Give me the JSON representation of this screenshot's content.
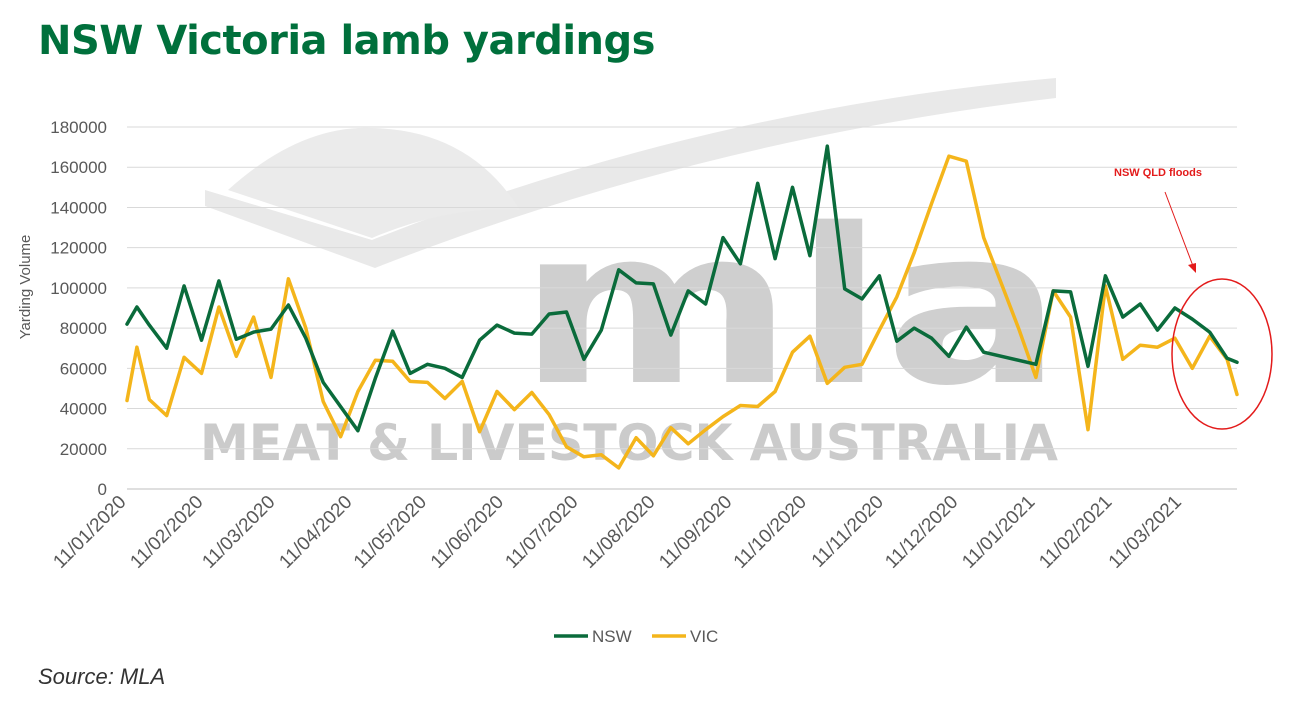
{
  "title": "NSW Victoria lamb yardings",
  "source": "Source: MLA",
  "watermark": {
    "logo_text": "mla",
    "company_text": "MEAT & LIVESTOCK AUSTRALIA"
  },
  "colors": {
    "nsw": "#0a6b3b",
    "vic": "#f4b51b",
    "title": "#00703c",
    "annotation": "#e31b1b",
    "grid": "#d9d9d9",
    "watermark": "#c8c8c8"
  },
  "chart_data": {
    "type": "line",
    "title": "NSW Victoria lamb yardings",
    "xlabel": "",
    "ylabel": "Yarding Volume",
    "ylim": [
      0,
      180000
    ],
    "yticks": [
      0,
      20000,
      40000,
      60000,
      80000,
      100000,
      120000,
      140000,
      160000,
      180000
    ],
    "ytick_labels": [
      "0",
      "20000",
      "40000",
      "60000",
      "80000",
      "100000",
      "120000",
      "140000",
      "160000",
      "180000"
    ],
    "x_start": "2020-01-11",
    "x_end": "2021-04-02",
    "xticks": [
      "2020-01-11",
      "2020-02-11",
      "2020-03-11",
      "2020-04-11",
      "2020-05-11",
      "2020-06-11",
      "2020-07-11",
      "2020-08-11",
      "2020-09-11",
      "2020-10-11",
      "2020-11-11",
      "2020-12-11",
      "2021-01-11",
      "2021-02-11",
      "2021-03-11"
    ],
    "xtick_labels": [
      "11/01/2020",
      "11/02/2020",
      "11/03/2020",
      "11/04/2020",
      "11/05/2020",
      "11/06/2020",
      "11/07/2020",
      "11/08/2020",
      "11/09/2020",
      "11/10/2020",
      "11/11/2020",
      "11/12/2020",
      "11/01/2021",
      "11/02/2021",
      "11/03/2021"
    ],
    "grid": true,
    "legend": "bottom",
    "series": [
      {
        "name": "NSW",
        "points": [
          [
            "2020-01-11",
            82000
          ],
          [
            "2020-01-15",
            90500
          ],
          [
            "2020-01-20",
            81500
          ],
          [
            "2020-01-27",
            70000
          ],
          [
            "2020-02-03",
            101000
          ],
          [
            "2020-02-10",
            74000
          ],
          [
            "2020-02-17",
            103500
          ],
          [
            "2020-02-24",
            74500
          ],
          [
            "2020-03-02",
            78000
          ],
          [
            "2020-03-09",
            79500
          ],
          [
            "2020-03-16",
            91500
          ],
          [
            "2020-03-23",
            75000
          ],
          [
            "2020-03-30",
            53000
          ],
          [
            "2020-04-13",
            29000
          ],
          [
            "2020-04-20",
            55000
          ],
          [
            "2020-04-27",
            78500
          ],
          [
            "2020-05-04",
            57500
          ],
          [
            "2020-05-11",
            62000
          ],
          [
            "2020-05-18",
            60000
          ],
          [
            "2020-05-25",
            55500
          ],
          [
            "2020-06-01",
            74000
          ],
          [
            "2020-06-08",
            81500
          ],
          [
            "2020-06-15",
            77500
          ],
          [
            "2020-06-22",
            77000
          ],
          [
            "2020-06-29",
            87000
          ],
          [
            "2020-07-06",
            88000
          ],
          [
            "2020-07-13",
            64500
          ],
          [
            "2020-07-20",
            79000
          ],
          [
            "2020-07-27",
            109000
          ],
          [
            "2020-08-03",
            102500
          ],
          [
            "2020-08-10",
            102000
          ],
          [
            "2020-08-17",
            76500
          ],
          [
            "2020-08-24",
            98500
          ],
          [
            "2020-08-31",
            92000
          ],
          [
            "2020-09-07",
            125000
          ],
          [
            "2020-09-14",
            112000
          ],
          [
            "2020-09-21",
            152000
          ],
          [
            "2020-09-28",
            114500
          ],
          [
            "2020-10-05",
            150000
          ],
          [
            "2020-10-12",
            116000
          ],
          [
            "2020-10-19",
            170500
          ],
          [
            "2020-10-26",
            99500
          ],
          [
            "2020-11-02",
            94500
          ],
          [
            "2020-11-09",
            106000
          ],
          [
            "2020-11-16",
            73500
          ],
          [
            "2020-11-23",
            80000
          ],
          [
            "2020-11-30",
            75000
          ],
          [
            "2020-12-07",
            66000
          ],
          [
            "2020-12-14",
            80500
          ],
          [
            "2020-12-21",
            68000
          ],
          [
            "2021-01-11",
            62000
          ],
          [
            "2021-01-18",
            98500
          ],
          [
            "2021-01-25",
            98000
          ],
          [
            "2021-02-01",
            61000
          ],
          [
            "2021-02-08",
            106000
          ],
          [
            "2021-02-15",
            85500
          ],
          [
            "2021-02-22",
            92000
          ],
          [
            "2021-03-01",
            79000
          ],
          [
            "2021-03-08",
            90000
          ],
          [
            "2021-03-15",
            84500
          ],
          [
            "2021-03-22",
            78000
          ],
          [
            "2021-03-29",
            65000
          ],
          [
            "2021-04-02",
            63000
          ]
        ]
      },
      {
        "name": "VIC",
        "points": [
          [
            "2020-01-11",
            44000
          ],
          [
            "2020-01-15",
            70500
          ],
          [
            "2020-01-20",
            44500
          ],
          [
            "2020-01-27",
            36500
          ],
          [
            "2020-02-03",
            65500
          ],
          [
            "2020-02-10",
            57500
          ],
          [
            "2020-02-17",
            90500
          ],
          [
            "2020-02-24",
            66000
          ],
          [
            "2020-03-02",
            85500
          ],
          [
            "2020-03-09",
            55500
          ],
          [
            "2020-03-16",
            104500
          ],
          [
            "2020-03-23",
            80000
          ],
          [
            "2020-03-30",
            43500
          ],
          [
            "2020-04-06",
            26000
          ],
          [
            "2020-04-13",
            48500
          ],
          [
            "2020-04-20",
            64000
          ],
          [
            "2020-04-27",
            63500
          ],
          [
            "2020-05-04",
            53500
          ],
          [
            "2020-05-11",
            53000
          ],
          [
            "2020-05-18",
            45000
          ],
          [
            "2020-05-25",
            53500
          ],
          [
            "2020-06-01",
            28500
          ],
          [
            "2020-06-08",
            48500
          ],
          [
            "2020-06-15",
            39500
          ],
          [
            "2020-06-22",
            48000
          ],
          [
            "2020-06-29",
            37000
          ],
          [
            "2020-07-06",
            21000
          ],
          [
            "2020-07-13",
            16000
          ],
          [
            "2020-07-20",
            17000
          ],
          [
            "2020-07-27",
            10500
          ],
          [
            "2020-08-03",
            25500
          ],
          [
            "2020-08-10",
            16500
          ],
          [
            "2020-08-17",
            30500
          ],
          [
            "2020-08-24",
            22500
          ],
          [
            "2020-08-31",
            29500
          ],
          [
            "2020-09-07",
            36000
          ],
          [
            "2020-09-14",
            41500
          ],
          [
            "2020-09-21",
            41000
          ],
          [
            "2020-09-28",
            48500
          ],
          [
            "2020-10-05",
            68000
          ],
          [
            "2020-10-12",
            76000
          ],
          [
            "2020-10-19",
            52500
          ],
          [
            "2020-10-26",
            60500
          ],
          [
            "2020-11-02",
            62000
          ],
          [
            "2020-11-09",
            79000
          ],
          [
            "2020-11-16",
            95500
          ],
          [
            "2020-11-23",
            117500
          ],
          [
            "2020-11-30",
            142000
          ],
          [
            "2020-12-07",
            165500
          ],
          [
            "2020-12-14",
            163000
          ],
          [
            "2020-12-21",
            125000
          ],
          [
            "2021-01-04",
            80000
          ],
          [
            "2021-01-11",
            55500
          ],
          [
            "2021-01-18",
            98500
          ],
          [
            "2021-01-25",
            85500
          ],
          [
            "2021-02-01",
            29500
          ],
          [
            "2021-02-08",
            101000
          ],
          [
            "2021-02-15",
            64500
          ],
          [
            "2021-02-22",
            71500
          ],
          [
            "2021-03-01",
            70500
          ],
          [
            "2021-03-08",
            75000
          ],
          [
            "2021-03-15",
            60000
          ],
          [
            "2021-03-22",
            76000
          ],
          [
            "2021-03-29",
            64500
          ],
          [
            "2021-04-02",
            47000
          ]
        ]
      }
    ],
    "annotation": {
      "text": "NSW QLD floods"
    }
  }
}
